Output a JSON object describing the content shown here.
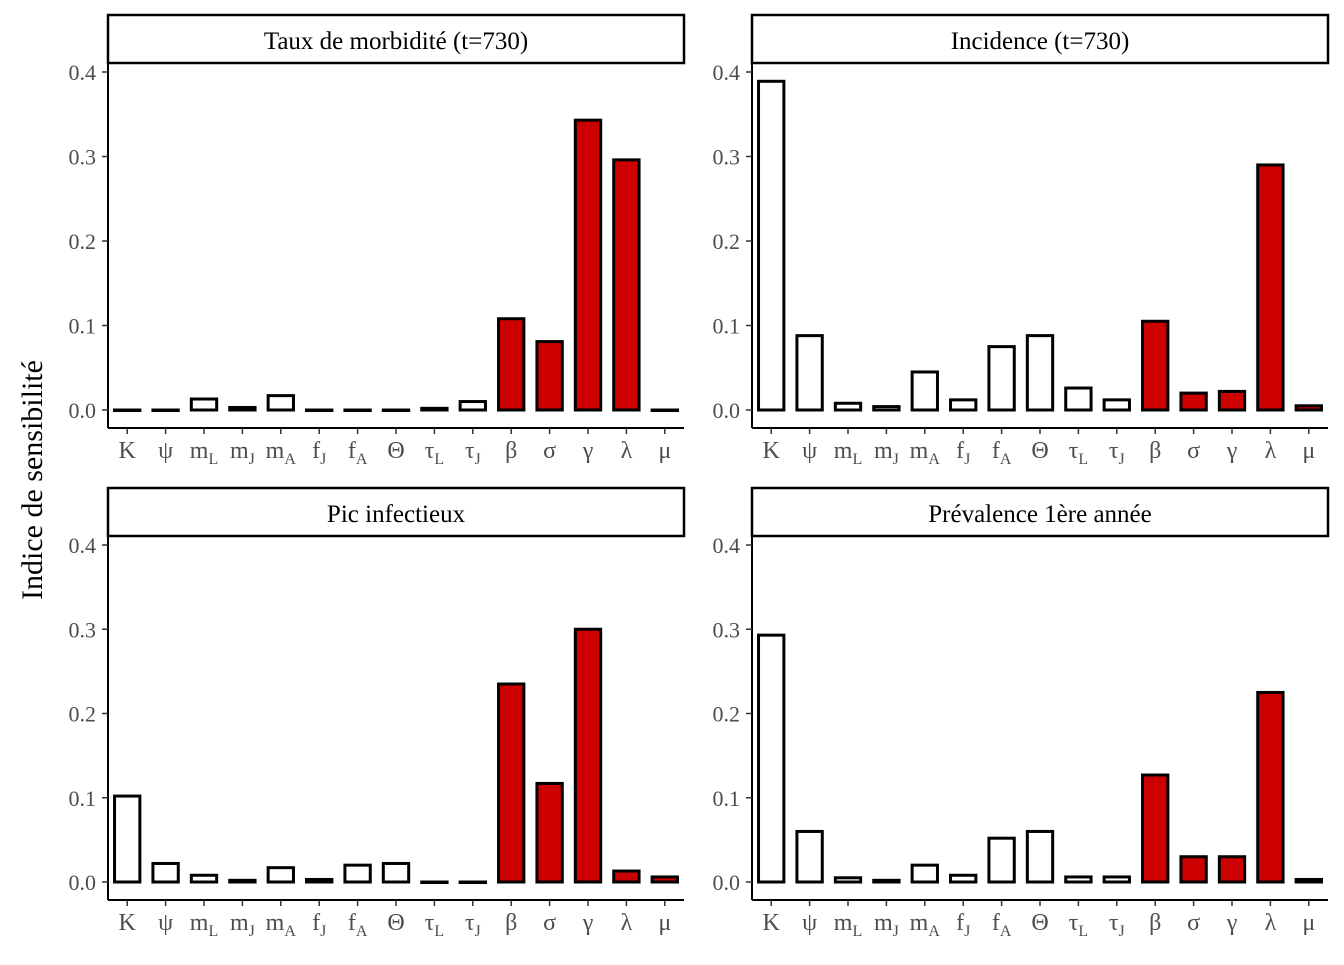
{
  "figure": {
    "ylabel": "Indice de sensibilité",
    "colors": {
      "highlight": "#cc0000",
      "plain": "#ffffff",
      "outline": "#000000",
      "tick_text": "#4d4d4d"
    },
    "highlighted_params": [
      "β",
      "σ",
      "γ",
      "λ",
      "μ"
    ]
  },
  "chart_data": [
    {
      "type": "bar",
      "title": "Taux de morbidité (t=730)",
      "categories": [
        {
          "base": "K",
          "sub": ""
        },
        {
          "base": "ψ",
          "sub": ""
        },
        {
          "base": "m",
          "sub": "L"
        },
        {
          "base": "m",
          "sub": "J"
        },
        {
          "base": "m",
          "sub": "A"
        },
        {
          "base": "f",
          "sub": "J"
        },
        {
          "base": "f",
          "sub": "A"
        },
        {
          "base": "Θ",
          "sub": ""
        },
        {
          "base": "τ",
          "sub": "L"
        },
        {
          "base": "τ",
          "sub": "J"
        },
        {
          "base": "β",
          "sub": ""
        },
        {
          "base": "σ",
          "sub": ""
        },
        {
          "base": "γ",
          "sub": ""
        },
        {
          "base": "λ",
          "sub": ""
        },
        {
          "base": "μ",
          "sub": ""
        }
      ],
      "values": [
        0.0,
        0.0,
        0.013,
        0.003,
        0.017,
        0.0,
        0.0,
        0.0,
        0.002,
        0.01,
        0.108,
        0.081,
        0.343,
        0.296,
        0.0
      ],
      "ylim": [
        0,
        0.4
      ],
      "yticks": [
        "0.0",
        "0.1",
        "0.2",
        "0.3",
        "0.4"
      ]
    },
    {
      "type": "bar",
      "title": "Incidence (t=730)",
      "categories": [
        {
          "base": "K",
          "sub": ""
        },
        {
          "base": "ψ",
          "sub": ""
        },
        {
          "base": "m",
          "sub": "L"
        },
        {
          "base": "m",
          "sub": "J"
        },
        {
          "base": "m",
          "sub": "A"
        },
        {
          "base": "f",
          "sub": "J"
        },
        {
          "base": "f",
          "sub": "A"
        },
        {
          "base": "Θ",
          "sub": ""
        },
        {
          "base": "τ",
          "sub": "L"
        },
        {
          "base": "τ",
          "sub": "J"
        },
        {
          "base": "β",
          "sub": ""
        },
        {
          "base": "σ",
          "sub": ""
        },
        {
          "base": "γ",
          "sub": ""
        },
        {
          "base": "λ",
          "sub": ""
        },
        {
          "base": "μ",
          "sub": ""
        }
      ],
      "values": [
        0.389,
        0.088,
        0.008,
        0.004,
        0.045,
        0.012,
        0.075,
        0.088,
        0.026,
        0.012,
        0.105,
        0.02,
        0.022,
        0.29,
        0.005
      ],
      "ylim": [
        0,
        0.4
      ],
      "yticks": [
        "0.0",
        "0.1",
        "0.2",
        "0.3",
        "0.4"
      ]
    },
    {
      "type": "bar",
      "title": "Pic infectieux",
      "categories": [
        {
          "base": "K",
          "sub": ""
        },
        {
          "base": "ψ",
          "sub": ""
        },
        {
          "base": "m",
          "sub": "L"
        },
        {
          "base": "m",
          "sub": "J"
        },
        {
          "base": "m",
          "sub": "A"
        },
        {
          "base": "f",
          "sub": "J"
        },
        {
          "base": "f",
          "sub": "A"
        },
        {
          "base": "Θ",
          "sub": ""
        },
        {
          "base": "τ",
          "sub": "L"
        },
        {
          "base": "τ",
          "sub": "J"
        },
        {
          "base": "β",
          "sub": ""
        },
        {
          "base": "σ",
          "sub": ""
        },
        {
          "base": "γ",
          "sub": ""
        },
        {
          "base": "λ",
          "sub": ""
        },
        {
          "base": "μ",
          "sub": ""
        }
      ],
      "values": [
        0.102,
        0.022,
        0.008,
        0.002,
        0.017,
        0.003,
        0.02,
        0.022,
        0.0,
        0.0,
        0.235,
        0.117,
        0.3,
        0.013,
        0.006
      ],
      "ylim": [
        0,
        0.4
      ],
      "yticks": [
        "0.0",
        "0.1",
        "0.2",
        "0.3",
        "0.4"
      ]
    },
    {
      "type": "bar",
      "title": "Prévalence 1ère année",
      "categories": [
        {
          "base": "K",
          "sub": ""
        },
        {
          "base": "ψ",
          "sub": ""
        },
        {
          "base": "m",
          "sub": "L"
        },
        {
          "base": "m",
          "sub": "J"
        },
        {
          "base": "m",
          "sub": "A"
        },
        {
          "base": "f",
          "sub": "J"
        },
        {
          "base": "f",
          "sub": "A"
        },
        {
          "base": "Θ",
          "sub": ""
        },
        {
          "base": "τ",
          "sub": "L"
        },
        {
          "base": "τ",
          "sub": "J"
        },
        {
          "base": "β",
          "sub": ""
        },
        {
          "base": "σ",
          "sub": ""
        },
        {
          "base": "γ",
          "sub": ""
        },
        {
          "base": "λ",
          "sub": ""
        },
        {
          "base": "μ",
          "sub": ""
        }
      ],
      "values": [
        0.293,
        0.06,
        0.005,
        0.002,
        0.02,
        0.008,
        0.052,
        0.06,
        0.006,
        0.006,
        0.127,
        0.03,
        0.03,
        0.225,
        0.003
      ],
      "ylim": [
        0,
        0.4
      ],
      "yticks": [
        "0.0",
        "0.1",
        "0.2",
        "0.3",
        "0.4"
      ]
    }
  ]
}
